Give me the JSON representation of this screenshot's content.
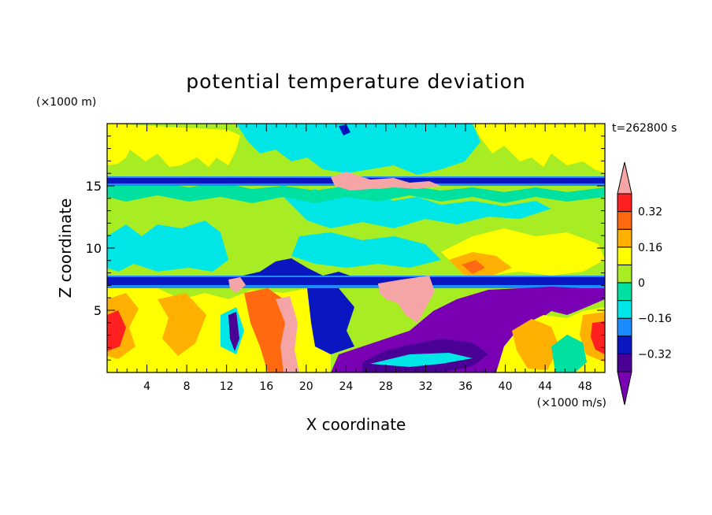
{
  "chart_data": {
    "type": "heatmap",
    "title": "potential temperature deviation",
    "xlabel": "X coordinate",
    "ylabel": "Z coordinate",
    "x_unit": "(×1000 m/s)",
    "y_unit": "(×1000 m)",
    "time_label": "t=262800 s",
    "xlim": [
      0,
      50
    ],
    "ylim": [
      0,
      20
    ],
    "x_ticks": [
      4,
      8,
      12,
      16,
      20,
      24,
      28,
      32,
      36,
      40,
      44,
      48
    ],
    "y_ticks": [
      5,
      10,
      15
    ],
    "colorbar": {
      "levels": [
        -0.4,
        -0.32,
        -0.24,
        -0.16,
        -0.08,
        0,
        0.08,
        0.16,
        0.24,
        0.32,
        0.4
      ],
      "tick_labels": [
        "0.32",
        "0.16",
        "0",
        "−0.16",
        "−0.32"
      ],
      "tick_values": [
        0.32,
        0.16,
        0,
        -0.16,
        -0.32
      ],
      "colors": [
        "#7a00b4",
        "#4a0094",
        "#0a16c0",
        "#1a8cff",
        "#00e6e6",
        "#00e0a0",
        "#a8ec24",
        "#ffff00",
        "#ffb000",
        "#ff6a10",
        "#ff2020",
        "#f5a5a5"
      ]
    }
  }
}
